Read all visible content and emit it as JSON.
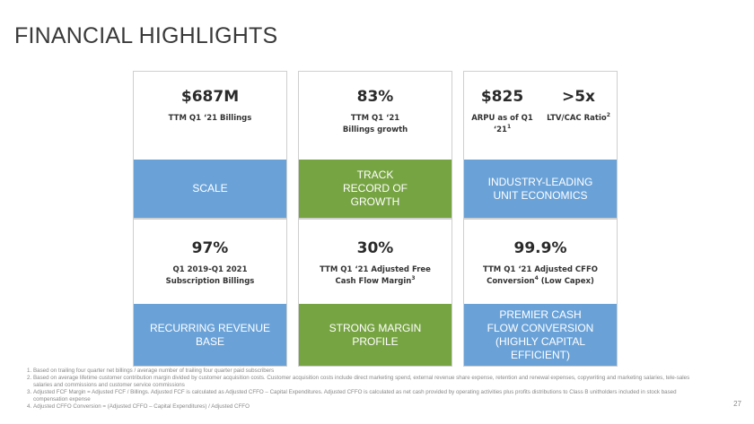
{
  "title": "FINANCIAL HIGHLIGHTS",
  "cards": {
    "scale": {
      "value": "$687M",
      "label": "TTM Q1 ‘21 Billings",
      "banner": "SCALE"
    },
    "track": {
      "value": "83%",
      "label": "TTM Q1 ‘21 Billings growth",
      "banner": "TRACK RECORD OF GROWTH"
    },
    "unit": {
      "value_a": "$825",
      "label_a": "ARPU as of Q1 ‘21",
      "sup_a": "1",
      "value_b": ">5x",
      "label_b": "LTV/CAC Ratio",
      "sup_b": "2",
      "banner": "INDUSTRY-LEADING UNIT ECONOMICS"
    },
    "recurring": {
      "value": "97%",
      "label_line1": "Q1 2019-Q1 2021",
      "label_line2": "Subscription Billings",
      "banner": "RECURRING REVENUE BASE"
    },
    "margin": {
      "value": "30%",
      "label_line1": "TTM Q1 ‘21 Adjusted Free",
      "label_line2": "Cash Flow Margin",
      "sup": "3",
      "banner": "STRONG MARGIN PROFILE"
    },
    "cashflow": {
      "value": "99.9%",
      "label_line1": "TTM Q1 ‘21 Adjusted CFFO",
      "label_line2a": "Conversion",
      "sup": "4",
      "label_line2b": " (Low Capex)",
      "banner": "PREMIER CASH FLOW CONVERSION (HIGHLY CAPITAL EFFICIENT)"
    }
  },
  "footnotes": [
    {
      "num": "1.",
      "text": "Based on trailing four quarter net billings / average number of trailing four quarter paid subscribers"
    },
    {
      "num": "2.",
      "text": "Based on average lifetime customer contribution margin divided by customer acquisition costs. Customer acquisition costs include direct marketing spend, external revenue share expense, retention and renewal expenses, copywriting and marketing salaries, tele-sales salaries and commissions and customer service commissions"
    },
    {
      "num": "3.",
      "text": "Adjusted FCF Margin = Adjusted FCF / Billings. Adjusted FCF is calculated as Adjusted CFFO – Capital Expenditures. Adjusted CFFO is calculated as net cash provided by operating activities plus profits distributions to Class B unitholders included in stock based compensation expense"
    },
    {
      "num": "4.",
      "text": "Adjusted CFFO Conversion = (Adjusted CFFO – Capital Expenditures) / Adjusted CFFO"
    }
  ],
  "page_number": "27",
  "colors": {
    "blue_banner": "#6aa2d8",
    "green_banner": "#77a443"
  }
}
